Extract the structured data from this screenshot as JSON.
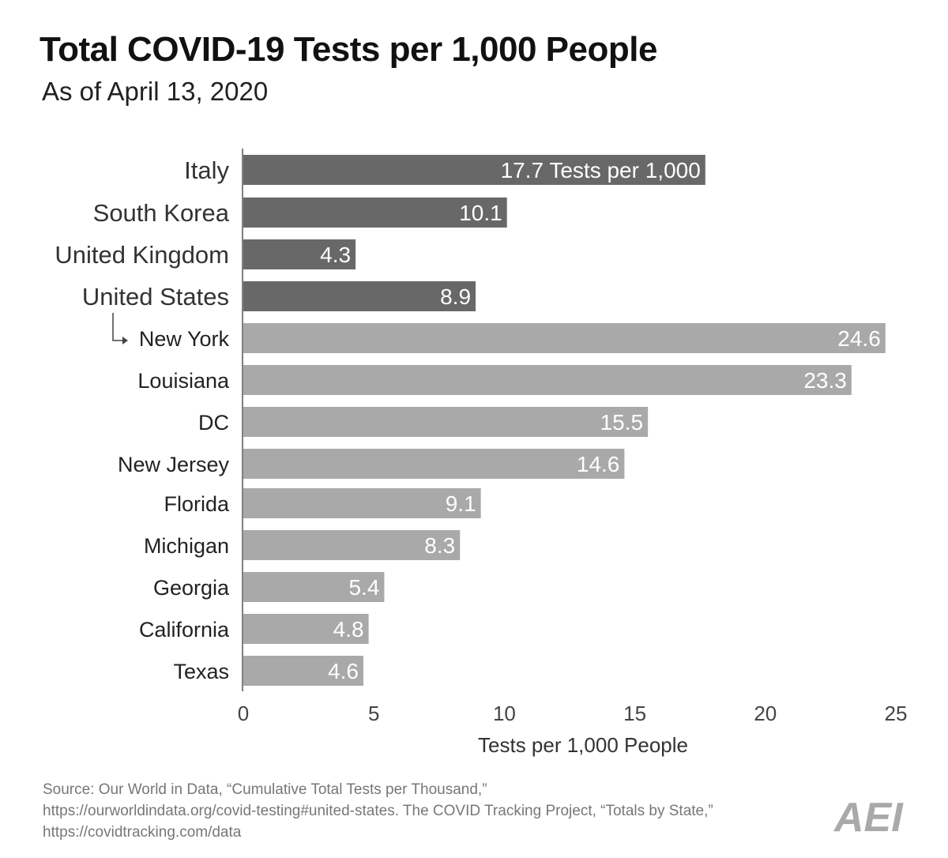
{
  "title": "Total COVID-19 Tests per 1,000 People",
  "subtitle": "As of April 13, 2020",
  "colors": {
    "country_bar": "#686868",
    "state_bar": "#a9a9a9",
    "label_text": "#ffffff",
    "axis": "#555555"
  },
  "chart_data": {
    "type": "bar",
    "orientation": "horizontal",
    "title": "Total COVID-19 Tests per 1,000 People",
    "subtitle": "As of April 13, 2020",
    "xlabel": "Tests per 1,000 People",
    "ylabel": "",
    "xlim": [
      0,
      25
    ],
    "xticks": [
      0,
      5,
      10,
      15,
      20,
      25
    ],
    "grid": false,
    "first_label_suffix": " Tests per 1,000",
    "categories": [
      "Italy",
      "South Korea",
      "United Kingdom",
      "United States",
      "New York",
      "Louisiana",
      "DC",
      "New Jersey",
      "Florida",
      "Michigan",
      "Georgia",
      "California",
      "Texas"
    ],
    "values": [
      17.7,
      10.1,
      4.3,
      8.9,
      24.6,
      23.3,
      15.5,
      14.6,
      9.1,
      8.3,
      5.4,
      4.8,
      4.6
    ],
    "value_labels": [
      "17.7 Tests per 1,000",
      "10.1",
      "4.3",
      "8.9",
      "24.6",
      "23.3",
      "15.5",
      "14.6",
      "9.1",
      "8.3",
      "5.4",
      "4.8",
      "4.6"
    ],
    "groups": [
      "country",
      "country",
      "country",
      "country",
      "state",
      "state",
      "state",
      "state",
      "state",
      "state",
      "state",
      "state",
      "state"
    ]
  },
  "source": {
    "line1": "Source: Our World in Data, “Cumulative Total Tests per Thousand,”",
    "line2": "https://ourworldindata.org/covid-testing#united-states. The COVID Tracking Project, “Totals by State,”",
    "line3": "https://covidtracking.com/data"
  },
  "logo_text": "AEI"
}
